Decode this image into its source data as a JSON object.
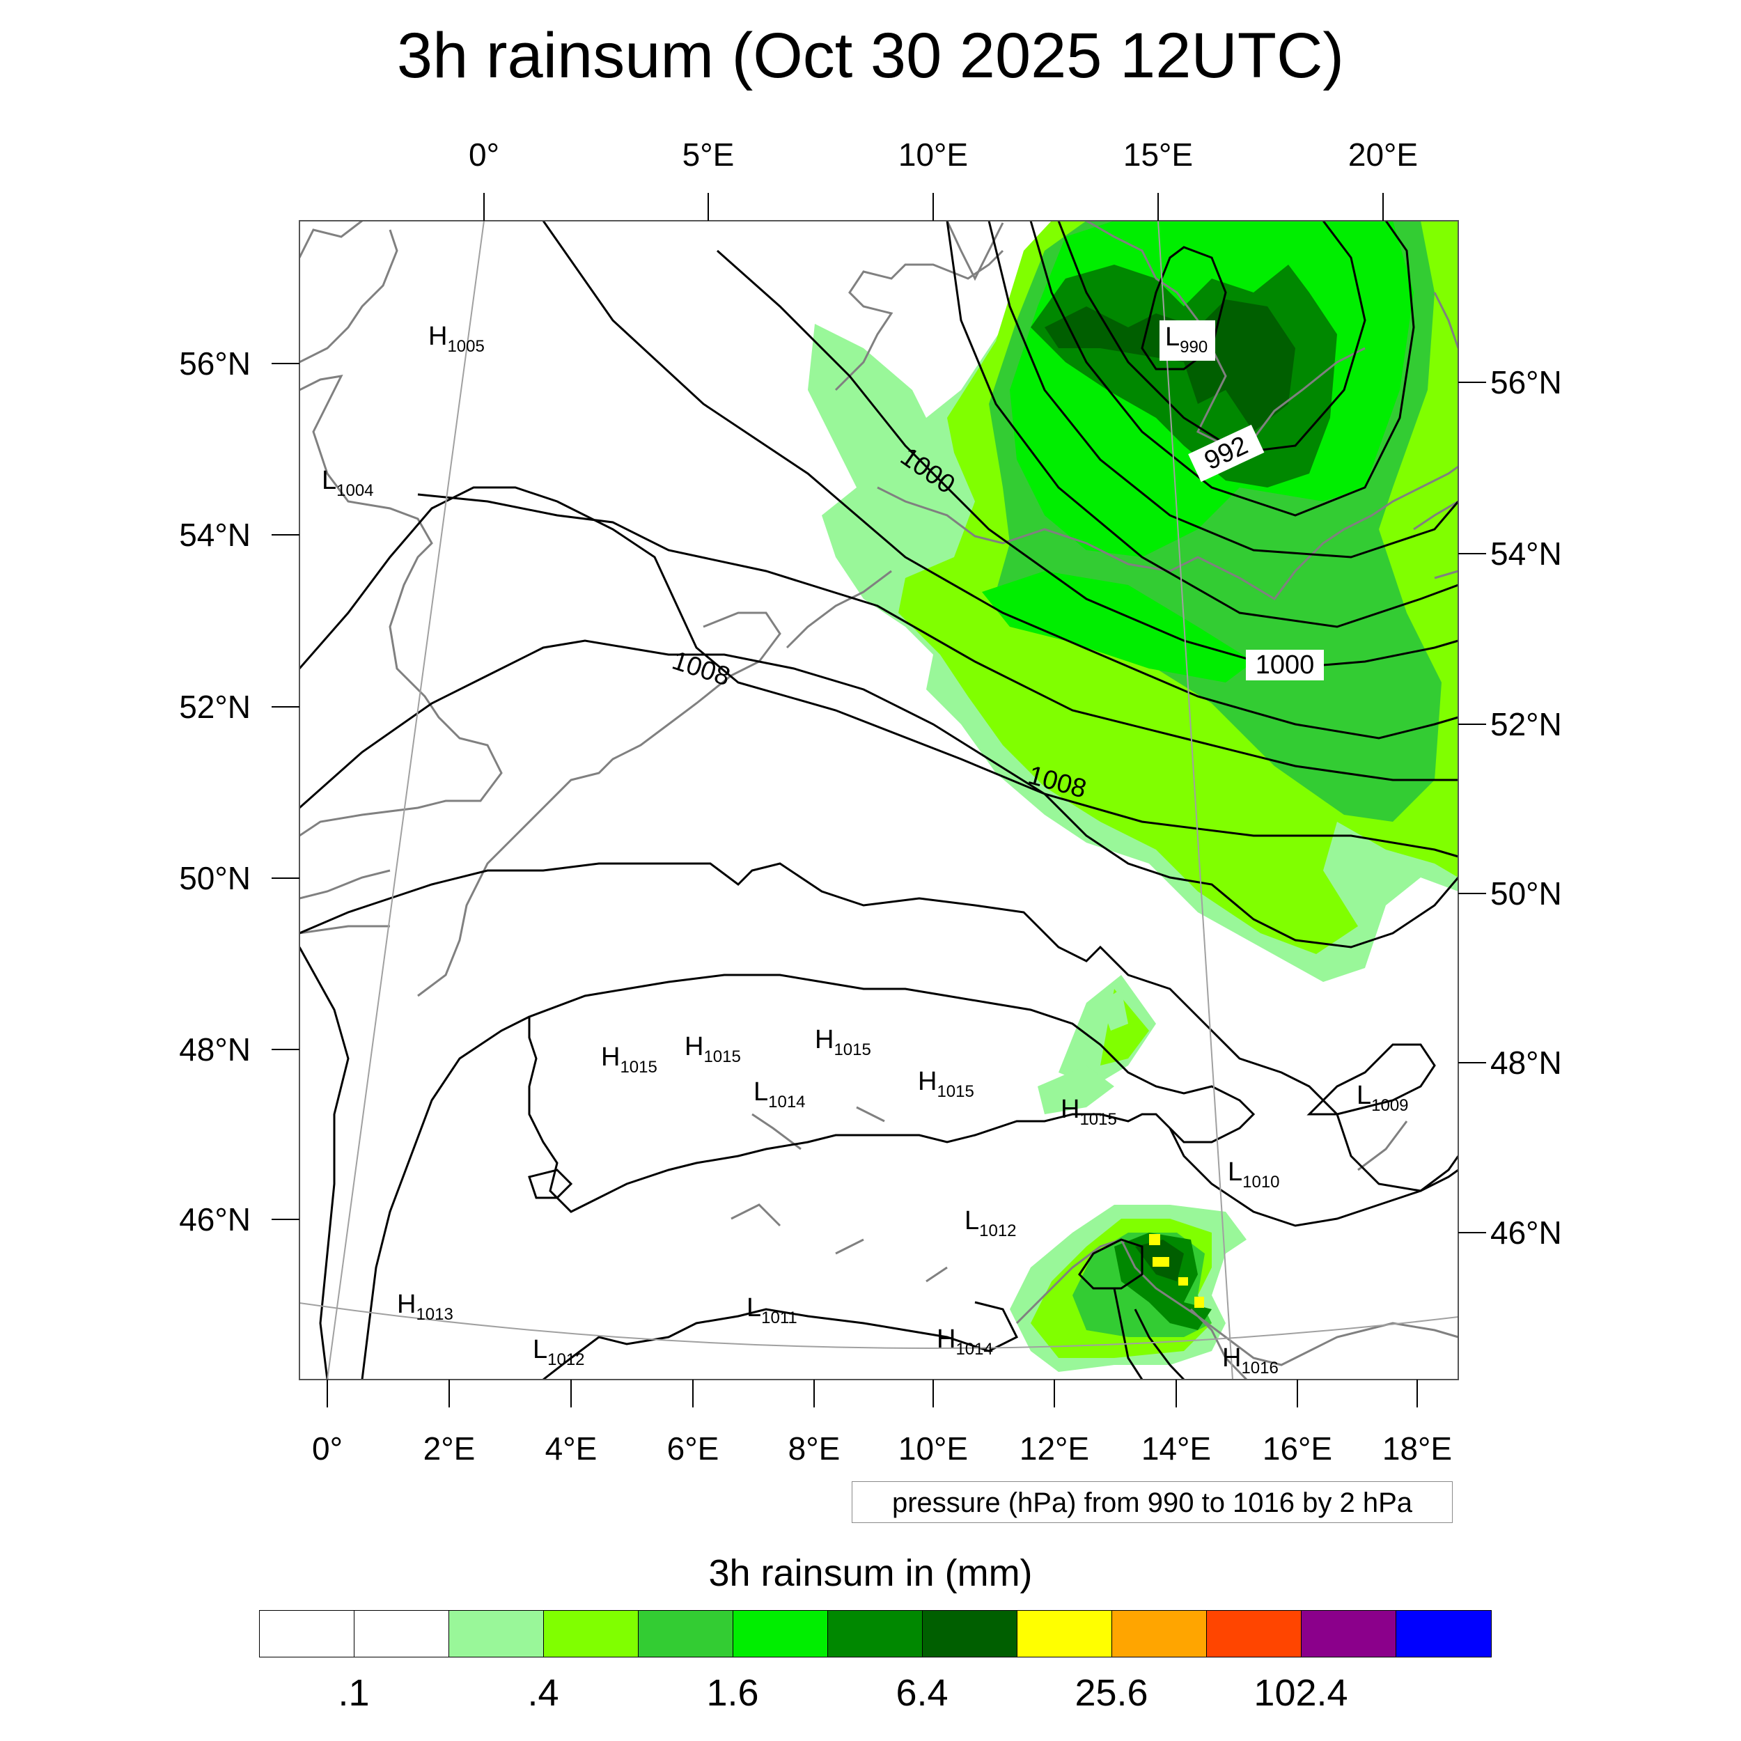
{
  "title": "3h rainsum (Oct 30 2025 12UTC)",
  "top_axis_labels": [
    "0°",
    "5°E",
    "10°E",
    "15°E",
    "20°E"
  ],
  "bottom_axis_labels": [
    "0°",
    "2°E",
    "4°E",
    "6°E",
    "8°E",
    "10°E",
    "12°E",
    "14°E",
    "16°E",
    "18°E"
  ],
  "left_axis_labels": [
    "56°N",
    "54°N",
    "52°N",
    "50°N",
    "48°N",
    "46°N"
  ],
  "right_axis_labels": [
    "56°N",
    "54°N",
    "52°N",
    "50°N",
    "48°N",
    "46°N"
  ],
  "contour_labels": [
    "1000",
    "992",
    "1008",
    "1000",
    "1008"
  ],
  "pressure_centers": [
    {
      "t": "H",
      "v": "1005"
    },
    {
      "t": "L",
      "v": "1004"
    },
    {
      "t": "L",
      "v": "990"
    },
    {
      "t": "H",
      "v": "1015"
    },
    {
      "t": "H",
      "v": "1015"
    },
    {
      "t": "H",
      "v": "1015"
    },
    {
      "t": "L",
      "v": "1014"
    },
    {
      "t": "H",
      "v": "1015"
    },
    {
      "t": "H",
      "v": "1015"
    },
    {
      "t": "L",
      "v": "1009"
    },
    {
      "t": "L",
      "v": "1010"
    },
    {
      "t": "L",
      "v": "1012"
    },
    {
      "t": "H",
      "v": "1013"
    },
    {
      "t": "L",
      "v": "1011"
    },
    {
      "t": "L",
      "v": "1012"
    },
    {
      "t": "H",
      "v": "1014"
    },
    {
      "t": "H",
      "v": "1016"
    }
  ],
  "pressure_note": "pressure (hPa) from 990 to 1016 by 2 hPa",
  "legend": {
    "title": "3h rainsum in (mm)",
    "colors": [
      "#ffffff",
      "#ffffff",
      "#99f799",
      "#80ff00",
      "#33cc33",
      "#00ee00",
      "#008800",
      "#005f00",
      "#ffff00",
      "#ffa500",
      "#ff4500",
      "#8b008b",
      "#0000ff"
    ],
    "labels": [
      ".1",
      ".4",
      "1.6",
      "6.4",
      "25.6",
      "102.4"
    ]
  },
  "colors": {
    "light_green": "#99f799",
    "lime": "#80ff00",
    "green": "#33cc33",
    "bright_green": "#00ee00",
    "dark_green": "#008800",
    "darkest_green": "#005f00",
    "yellow": "#ffff00",
    "coast": "#808080"
  }
}
